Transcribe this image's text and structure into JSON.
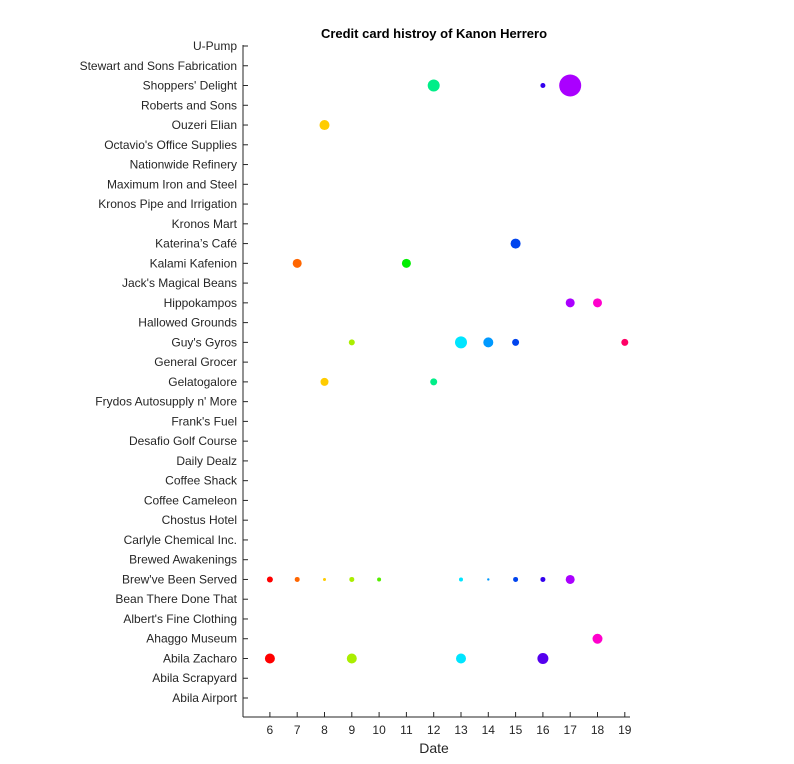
{
  "chart_data": {
    "type": "scatter",
    "title": "Credit card histroy of Kanon Herrero",
    "xlabel": "Date",
    "ylabel": "",
    "x_ticks": [
      6,
      7,
      8,
      9,
      10,
      11,
      12,
      13,
      14,
      15,
      16,
      17,
      18,
      19
    ],
    "xlim": [
      5,
      19
    ],
    "grid": false,
    "legend": "none",
    "categories": [
      "Abila Airport",
      "Abila Scrapyard",
      "Abila Zacharo",
      "Ahaggo Museum",
      "Albert's Fine Clothing",
      "Bean There Done That",
      "Brew've Been Served",
      "Brewed Awakenings",
      "Carlyle Chemical Inc.",
      "Chostus Hotel",
      "Coffee Cameleon",
      "Coffee Shack",
      "Daily Dealz",
      "Desafio Golf Course",
      "Frank's Fuel",
      "Frydos Autosupply n' More",
      "Gelatogalore",
      "General Grocer",
      "Guy's Gyros",
      "Hallowed Grounds",
      "Hippokampos",
      "Jack's Magical Beans",
      "Kalami Kafenion",
      "Katerina’s Café",
      "Kronos Mart",
      "Kronos Pipe and Irrigation",
      "Maximum Iron and Steel",
      "Nationwide Refinery",
      "Octavio's Office Supplies",
      "Ouzeri Elian",
      "Roberts and Sons",
      "Shoppers' Delight",
      "Stewart and Sons Fabrication",
      "U-Pump"
    ],
    "points": [
      {
        "x": 6,
        "y": "Abila Zacharo",
        "size": 5,
        "color": "#ff0000"
      },
      {
        "x": 9,
        "y": "Abila Zacharo",
        "size": 5,
        "color": "#aaee00"
      },
      {
        "x": 13,
        "y": "Abila Zacharo",
        "size": 5,
        "color": "#00e5ff"
      },
      {
        "x": 16,
        "y": "Abila Zacharo",
        "size": 5.5,
        "color": "#5500ee"
      },
      {
        "x": 18,
        "y": "Ahaggo Museum",
        "size": 5,
        "color": "#ff00cc"
      },
      {
        "x": 6,
        "y": "Brew've Been Served",
        "size": 3,
        "color": "#ff0000"
      },
      {
        "x": 7,
        "y": "Brew've Been Served",
        "size": 2.5,
        "color": "#ff6600"
      },
      {
        "x": 8,
        "y": "Brew've Been Served",
        "size": 1.5,
        "color": "#ffcc00"
      },
      {
        "x": 9,
        "y": "Brew've Been Served",
        "size": 2.5,
        "color": "#aaee00"
      },
      {
        "x": 10,
        "y": "Brew've Been Served",
        "size": 2,
        "color": "#55ee00"
      },
      {
        "x": 13,
        "y": "Brew've Been Served",
        "size": 2,
        "color": "#00e5ff"
      },
      {
        "x": 14,
        "y": "Brew've Been Served",
        "size": 1.2,
        "color": "#0099ff"
      },
      {
        "x": 15,
        "y": "Brew've Been Served",
        "size": 2.5,
        "color": "#0044ee"
      },
      {
        "x": 16,
        "y": "Brew've Been Served",
        "size": 2.5,
        "color": "#3300ee"
      },
      {
        "x": 17,
        "y": "Brew've Been Served",
        "size": 4.5,
        "color": "#aa00ff"
      },
      {
        "x": 8,
        "y": "Gelatogalore",
        "size": 4,
        "color": "#ffcc00"
      },
      {
        "x": 12,
        "y": "Gelatogalore",
        "size": 3.5,
        "color": "#00ee88"
      },
      {
        "x": 9,
        "y": "Guy's Gyros",
        "size": 3,
        "color": "#aaee00"
      },
      {
        "x": 13,
        "y": "Guy's Gyros",
        "size": 6,
        "color": "#00e5ff"
      },
      {
        "x": 14,
        "y": "Guy's Gyros",
        "size": 5,
        "color": "#0099ff"
      },
      {
        "x": 15,
        "y": "Guy's Gyros",
        "size": 3.5,
        "color": "#0044ee"
      },
      {
        "x": 19,
        "y": "Guy's Gyros",
        "size": 3.5,
        "color": "#ff0066"
      },
      {
        "x": 17,
        "y": "Hippokampos",
        "size": 4.5,
        "color": "#aa00ff"
      },
      {
        "x": 18,
        "y": "Hippokampos",
        "size": 4.5,
        "color": "#ff00cc"
      },
      {
        "x": 7,
        "y": "Kalami Kafenion",
        "size": 4.5,
        "color": "#ff6600"
      },
      {
        "x": 11,
        "y": "Kalami Kafenion",
        "size": 4.5,
        "color": "#00ee00"
      },
      {
        "x": 15,
        "y": "Katerina’s Café",
        "size": 5,
        "color": "#0044ee"
      },
      {
        "x": 8,
        "y": "Ouzeri Elian",
        "size": 5,
        "color": "#ffcc00"
      },
      {
        "x": 12,
        "y": "Shoppers' Delight",
        "size": 6,
        "color": "#00ee88"
      },
      {
        "x": 16,
        "y": "Shoppers' Delight",
        "size": 2.5,
        "color": "#3300ee"
      },
      {
        "x": 17,
        "y": "Shoppers' Delight",
        "size": 11,
        "color": "#aa00ff"
      }
    ]
  }
}
